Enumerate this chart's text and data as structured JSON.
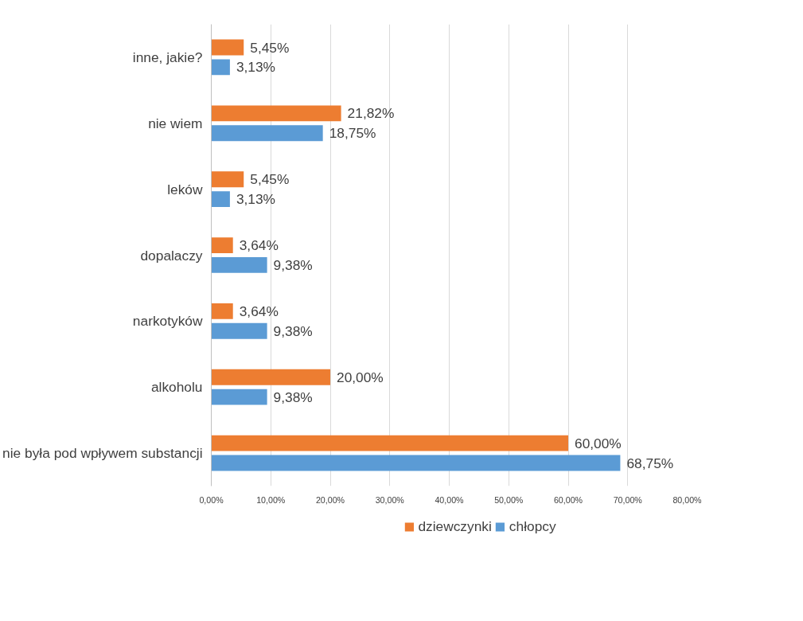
{
  "chart_data": {
    "type": "bar",
    "orientation": "horizontal",
    "categories": [
      "inne, jakie?",
      "nie wiem",
      "leków",
      "dopalaczy",
      "narkotyków",
      "alkoholu",
      "nie była pod wpływem substancji"
    ],
    "series": [
      {
        "name": "dziewczynki",
        "color": "#ed7d31",
        "values": [
          5.45,
          21.82,
          5.45,
          3.64,
          3.64,
          20.0,
          60.0
        ],
        "value_labels": [
          "5,45%",
          "21,82%",
          "5,45%",
          "3,64%",
          "3,64%",
          "20,00%",
          "60,00%"
        ]
      },
      {
        "name": "chłopcy",
        "color": "#5b9bd5",
        "values": [
          3.13,
          18.75,
          3.13,
          9.38,
          9.38,
          9.38,
          68.75
        ],
        "value_labels": [
          "3,13%",
          "18,75%",
          "3,13%",
          "9,38%",
          "9,38%",
          "9,38%",
          "68,75%"
        ]
      }
    ],
    "xlim": [
      0,
      80
    ],
    "xticks": [
      {
        "value": 0,
        "label": "0,00%"
      },
      {
        "value": 10,
        "label": "10,00%"
      },
      {
        "value": 20,
        "label": "20,00%"
      },
      {
        "value": 30,
        "label": "30,00%"
      },
      {
        "value": 40,
        "label": "40,00%"
      },
      {
        "value": 50,
        "label": "50,00%"
      },
      {
        "value": 60,
        "label": "60,00%"
      },
      {
        "value": 70,
        "label": "70,00%"
      },
      {
        "value": 80,
        "label": "80,00%"
      }
    ],
    "grid": "x",
    "legend": "bottom"
  }
}
